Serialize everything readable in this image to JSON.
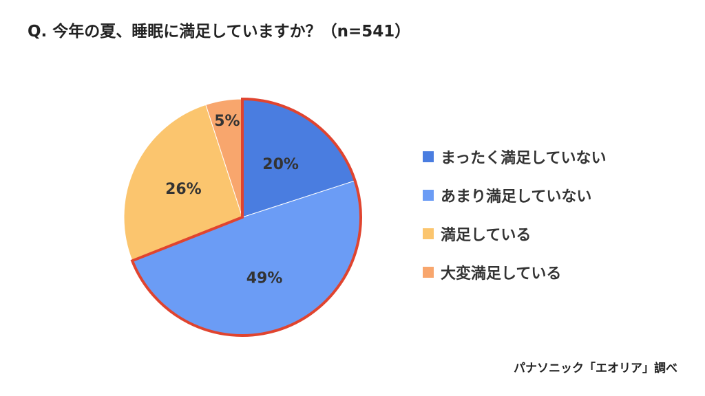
{
  "title": "Q. 今年の夏、睡眠に満足していますか？（n=541）",
  "source": "パナソニック「エオリア」調べ",
  "chart_data": {
    "type": "pie",
    "title": "Q. 今年の夏、睡眠に満足していますか？（n=541）",
    "n": 541,
    "slices": [
      {
        "label": "まったく満足していない",
        "value": 20,
        "display": "20%",
        "color": "#4a7de0",
        "highlighted": true
      },
      {
        "label": "あまり満足していない",
        "value": 49,
        "display": "49%",
        "color": "#6b9cf5",
        "highlighted": true
      },
      {
        "label": "満足している",
        "value": 26,
        "display": "26%",
        "color": "#fbc56e",
        "highlighted": false
      },
      {
        "label": "大変満足している",
        "value": 5,
        "display": "5%",
        "color": "#f8a66d",
        "highlighted": false
      }
    ],
    "highlight_color": "#e0442f",
    "legend_position": "right",
    "start": "12 o'clock",
    "direction": "clockwise"
  }
}
